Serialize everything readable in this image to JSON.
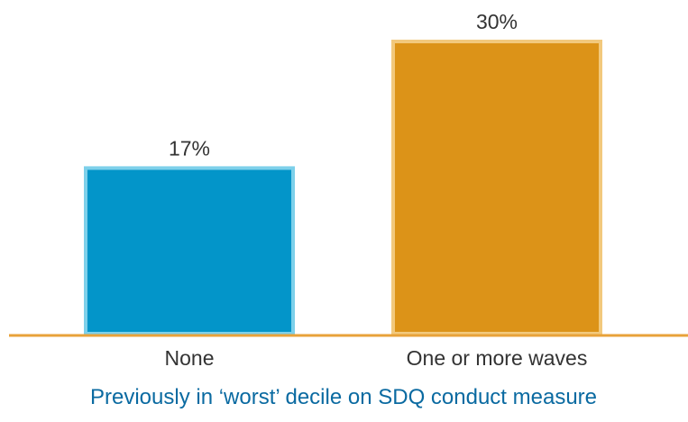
{
  "chart_data": {
    "type": "bar",
    "categories": [
      "None",
      "One or more waves"
    ],
    "values": [
      17,
      30
    ],
    "value_labels": [
      "17%",
      "30%"
    ],
    "title": "",
    "xlabel": "Previously in ‘worst’ decile on SDQ conduct measure",
    "ylabel": "",
    "ylim": [
      0,
      30
    ],
    "grid": false,
    "legend": "none",
    "colors": {
      "bars": [
        "#0395c9",
        "#dc9318"
      ],
      "bar_outlines": [
        "#7dd0ea",
        "#f2c97d"
      ],
      "axis_line": "#e8a23a",
      "label_text": "#333333",
      "xlabel_text": "#0a6aa1"
    }
  }
}
